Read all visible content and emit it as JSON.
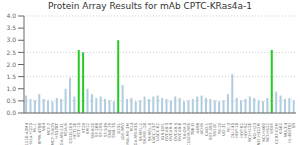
{
  "chart_data": {
    "type": "bar",
    "title": "Protein Array Results for mAb CPTC-KRas4a-1",
    "categories": [
      "L1210-A3M4",
      "HeLa-H1D5",
      "ML-1",
      "RPMI-4788",
      "NB4",
      "MCF-7",
      "MCF-7/ADR",
      "HS578T",
      "MDA-MB-231",
      "MDA-N",
      "COLO-205",
      "HCT116",
      "HCT-15",
      "HT29",
      "KM12",
      "SW-620",
      "SF-268",
      "SF-295",
      "SF-539",
      "SNB-19",
      "SNB-75",
      "U251",
      "LOX-IMVI",
      "MALME-3M",
      "M14",
      "MDA-MB-435",
      "SK-MEL-2",
      "SK-MEL-28",
      "SK-MEL-5",
      "UACC-257",
      "UACC-62",
      "IGR-OV1",
      "OVCAR-3",
      "OVCAR-4",
      "OVCAR-5",
      "OVCAR-8",
      "SK-OV-3",
      "NCI/ADR-RES",
      "786-O",
      "A498",
      "ACHN",
      "CAKI-1",
      "RXF-393",
      "SN12C",
      "TK-10",
      "UO-31",
      "PC-3",
      "DU-145",
      "HOP-18",
      "HOP-62",
      "HOP-92",
      "NCI-H226",
      "NCI-H23",
      "NCI-H322M",
      "NCI-H460",
      "NCI-H522",
      "EKVX",
      "CCRF-CEM",
      "K-562",
      "MOLT-4",
      "HL-60(TB)",
      "SR"
    ],
    "values": [
      0.72,
      0.58,
      0.52,
      0.78,
      0.58,
      0.52,
      0.48,
      0.62,
      0.58,
      1.0,
      1.45,
      0.68,
      2.6,
      2.5,
      1.0,
      0.78,
      0.62,
      0.68,
      0.58,
      0.52,
      0.48,
      3.0,
      1.15,
      0.58,
      0.62,
      0.48,
      0.52,
      0.68,
      0.58,
      0.68,
      0.72,
      0.62,
      0.58,
      0.52,
      0.68,
      0.62,
      0.48,
      0.52,
      0.58,
      0.68,
      0.72,
      0.62,
      0.58,
      0.52,
      0.48,
      0.52,
      0.78,
      1.6,
      0.62,
      0.52,
      0.58,
      0.68,
      0.62,
      0.52,
      0.48,
      0.62,
      2.6,
      0.88,
      0.72,
      0.58,
      0.62,
      0.52
    ],
    "colors": [
      "#b0cce0",
      "#b0cce0",
      "#b0cce0",
      "#b0cce0",
      "#b0cce0",
      "#b0cce0",
      "#b0cce0",
      "#b0cce0",
      "#b0cce0",
      "#b0cce0",
      "#b0cce0",
      "#b0cce0",
      "#22cc22",
      "#22cc22",
      "#b0cce0",
      "#b0cce0",
      "#b0cce0",
      "#b0cce0",
      "#b0cce0",
      "#b0cce0",
      "#b0cce0",
      "#22cc22",
      "#b0cce0",
      "#b0cce0",
      "#b0cce0",
      "#b0cce0",
      "#b0cce0",
      "#b0cce0",
      "#b0cce0",
      "#b0cce0",
      "#b0cce0",
      "#b0cce0",
      "#b0cce0",
      "#b0cce0",
      "#b0cce0",
      "#b0cce0",
      "#b0cce0",
      "#b0cce0",
      "#b0cce0",
      "#b0cce0",
      "#b0cce0",
      "#b0cce0",
      "#b0cce0",
      "#b0cce0",
      "#b0cce0",
      "#b0cce0",
      "#b0cce0",
      "#b0cce0",
      "#b0cce0",
      "#b0cce0",
      "#b0cce0",
      "#b0cce0",
      "#b0cce0",
      "#b0cce0",
      "#b0cce0",
      "#b0cce0",
      "#22cc22",
      "#b0cce0",
      "#b0cce0",
      "#b0cce0",
      "#b0cce0",
      "#b0cce0"
    ],
    "ylim": [
      0.0,
      4.0
    ],
    "yticks": [
      {
        "value": 0.0,
        "label": "0.0"
      },
      0.5,
      {
        "value": 1.0,
        "label": "1.0"
      },
      1.5,
      {
        "value": 2.0,
        "label": "2.0"
      },
      2.5,
      {
        "value": 3.0,
        "label": "3.0"
      },
      3.5,
      {
        "value": 4.0,
        "label": "4.0"
      }
    ],
    "grid": true
  }
}
